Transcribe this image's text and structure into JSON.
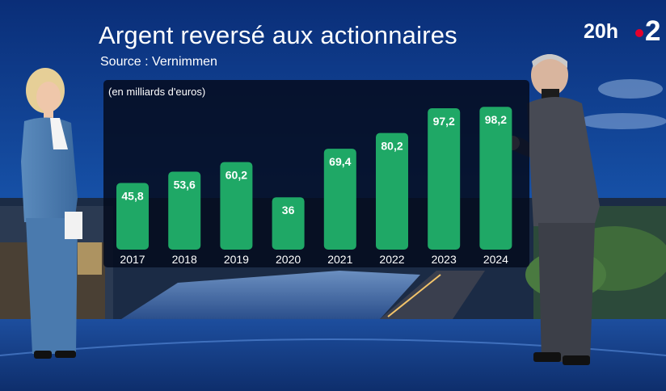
{
  "broadcast": {
    "title": "Argent reversé aux actionnaires",
    "source": "Source : Vernimmen",
    "logo": {
      "text": "20h",
      "number": "2",
      "dot_color": "#e4002b"
    }
  },
  "chart_data": {
    "type": "bar",
    "unit_note": "(en milliards d'euros)",
    "categories": [
      "2017",
      "2018",
      "2019",
      "2020",
      "2021",
      "2022",
      "2023",
      "2024"
    ],
    "values": [
      45.8,
      53.6,
      60.2,
      36,
      69.4,
      80.2,
      97.2,
      98.2
    ],
    "value_labels": [
      "45,8",
      "53,6",
      "60,2",
      "36",
      "69,4",
      "80,2",
      "97,2",
      "98,2"
    ],
    "bar_color": "#1fa866",
    "grid": false
  }
}
